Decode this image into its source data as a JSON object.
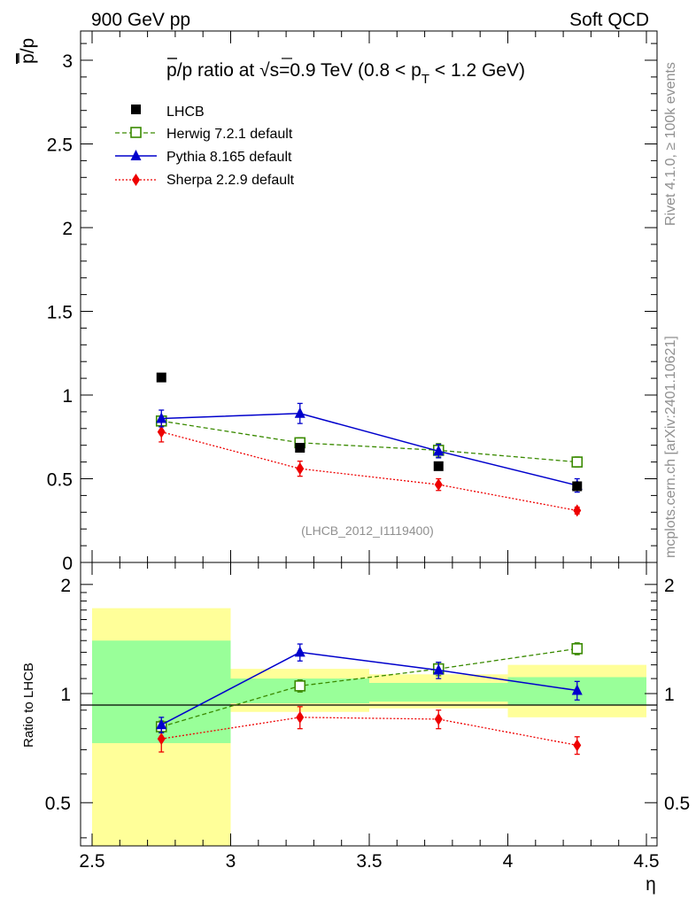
{
  "header": {
    "energy_label": "900 GeV pp",
    "process_label": "Soft QCD"
  },
  "side": {
    "rivet_label": "Rivet 4.1.0, ≥ 100k events",
    "mcplots_label": "mcplots.cern.ch [arXiv:2401.10621]"
  },
  "colors": {
    "data": "#000000",
    "herwig": "#3a8a00",
    "pythia": "#0000cc",
    "sherpa": "#ee0000",
    "band_inner": "#99ff99",
    "band_outer": "#ffff99"
  },
  "chart_data": [
    {
      "type": "scatter",
      "title_parts": {
        "p1": "p",
        "p2": "/p ratio at ",
        "sqrt": "√",
        "s": "s",
        "p3": "=0.9 TeV (0.8 < p",
        "sub": "T",
        "p4": " < 1.2 GeV)"
      },
      "ylabel_parts": {
        "bar": "p",
        "rest": "/p"
      },
      "analysis_id": "(LHCB_2012_I1119400)",
      "xlim": [
        2.5,
        4.5
      ],
      "ylim": [
        0,
        3.2
      ],
      "yticks": [
        0,
        0.5,
        1,
        1.5,
        2,
        2.5,
        3
      ],
      "ytick_labels": [
        "0",
        "0.5",
        "1",
        "1.5",
        "2",
        "2.5",
        "3"
      ],
      "bin_edges": [
        2.5,
        3.0,
        3.5,
        4.0,
        4.5
      ],
      "x": [
        2.75,
        3.25,
        3.75,
        4.25
      ],
      "series": [
        {
          "key": "data",
          "name": "LHCB",
          "values": [
            1.105,
            0.685,
            0.575,
            0.455
          ],
          "errors": [
            0,
            0,
            0,
            0
          ]
        },
        {
          "key": "herwig",
          "name": "Herwig 7.2.1 default",
          "values": [
            0.845,
            0.715,
            0.67,
            0.6
          ],
          "errors": [
            0.02,
            0.03,
            0.04,
            0.03
          ]
        },
        {
          "key": "pythia",
          "name": "Pythia 8.165 default",
          "values": [
            0.86,
            0.89,
            0.665,
            0.46
          ],
          "errors": [
            0.05,
            0.06,
            0.04,
            0.04
          ]
        },
        {
          "key": "sherpa",
          "name": "Sherpa 2.2.9 default",
          "values": [
            0.78,
            0.56,
            0.465,
            0.31
          ],
          "errors": [
            0.06,
            0.045,
            0.035,
            0.02
          ]
        }
      ]
    },
    {
      "type": "scatter",
      "ylabel": "Ratio to LHCB",
      "xlabel": "η",
      "xlim": [
        2.5,
        4.5
      ],
      "ylim": [
        0.38,
        2.3
      ],
      "yscale": "log",
      "yticks": [
        0.5,
        1,
        2
      ],
      "ytick_labels": [
        "0.5",
        "1",
        "2"
      ],
      "xticks": [
        2.5,
        3,
        3.5,
        4,
        4.5
      ],
      "xtick_labels": [
        "2.5",
        "3",
        "3.5",
        "4",
        "4.5"
      ],
      "x": [
        2.75,
        3.25,
        3.75,
        4.25
      ],
      "bands": [
        {
          "lo": 2.5,
          "hi": 3.0,
          "inner": [
            0.73,
            1.4
          ],
          "outer": [
            0.35,
            1.72
          ]
        },
        {
          "lo": 3.0,
          "hi": 3.5,
          "inner": [
            0.94,
            1.1
          ],
          "outer": [
            0.89,
            1.17
          ]
        },
        {
          "lo": 3.5,
          "hi": 4.0,
          "inner": [
            0.95,
            1.07
          ],
          "outer": [
            0.91,
            1.13
          ]
        },
        {
          "lo": 4.0,
          "hi": 4.5,
          "inner": [
            0.93,
            1.11
          ],
          "outer": [
            0.86,
            1.2
          ]
        }
      ],
      "series": [
        {
          "key": "herwig",
          "name": "Herwig 7.2.1 default",
          "values": [
            0.81,
            1.05,
            1.17,
            1.33
          ],
          "errors": [
            0.03,
            0.04,
            0.05,
            0.05
          ]
        },
        {
          "key": "pythia",
          "name": "Pythia 8.165 default",
          "values": [
            0.82,
            1.3,
            1.16,
            1.02
          ],
          "errors": [
            0.04,
            0.07,
            0.06,
            0.06
          ]
        },
        {
          "key": "sherpa",
          "name": "Sherpa 2.2.9 default",
          "values": [
            0.75,
            0.86,
            0.85,
            0.72
          ],
          "errors": [
            0.06,
            0.06,
            0.05,
            0.04
          ]
        }
      ]
    }
  ]
}
